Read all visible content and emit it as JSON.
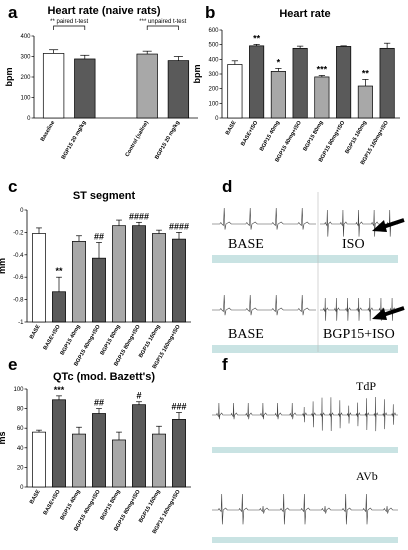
{
  "chart_data": [
    {
      "panel": "a",
      "type": "bar",
      "title": "Heart rate (naive rats)",
      "ylabel": "bpm",
      "ylim": [
        0,
        400
      ],
      "yticks": [
        0,
        100,
        200,
        300,
        400
      ],
      "categories": [
        "Baseline",
        "BGP15 20 mg/kg",
        "Control (saline)",
        "BGP15 20 mg/kg"
      ],
      "values": [
        315,
        288,
        312,
        280
      ],
      "errors": [
        18,
        18,
        14,
        20
      ],
      "colors": [
        "#ffffff",
        "#5a5a5a",
        "#a8a8a8",
        "#5a5a5a"
      ],
      "annotations": [
        "** paired t-test",
        "*** unpaired t-test"
      ],
      "significance": [
        "",
        "",
        "",
        ""
      ]
    },
    {
      "panel": "b",
      "type": "bar",
      "title": "Heart rate",
      "ylabel": "bpm",
      "ylim": [
        0,
        600
      ],
      "yticks": [
        0,
        100,
        200,
        300,
        400,
        500,
        600
      ],
      "categories": [
        "BASE",
        "BASE+ISO",
        "BGP15 40mg",
        "BGP15 40mg+ISO",
        "BGP15 80mg",
        "BGP15 80mg+ISO",
        "BGP15 160mg",
        "BGP15 160mg+ISO"
      ],
      "values": [
        365,
        492,
        318,
        475,
        280,
        488,
        218,
        475
      ],
      "errors": [
        25,
        10,
        20,
        15,
        10,
        4,
        45,
        35
      ],
      "colors": [
        "#ffffff",
        "#5a5a5a",
        "#a8a8a8",
        "#5a5a5a",
        "#a8a8a8",
        "#5a5a5a",
        "#a8a8a8",
        "#5a5a5a"
      ],
      "significance": [
        "",
        "**",
        "*",
        "",
        "***",
        "",
        "**",
        ""
      ]
    },
    {
      "panel": "c",
      "type": "bar",
      "title": "ST segment",
      "ylabel": "mm",
      "ylim": [
        -1.0,
        0
      ],
      "yticks": [
        0,
        -0.2,
        -0.4,
        -0.6,
        -0.8,
        -1.0
      ],
      "categories": [
        "BASE",
        "BASE+ISO",
        "BGP15 40mg",
        "BGP15 40mg+ISO",
        "BGP15 80mg",
        "BGP15 80mg+ISO",
        "BGP15 160mg",
        "BGP15 160mg+ISO"
      ],
      "values": [
        -0.21,
        -0.73,
        -0.28,
        -0.43,
        -0.14,
        -0.14,
        -0.21,
        -0.26
      ],
      "errors": [
        0.05,
        0.13,
        0.05,
        0.14,
        0.05,
        0.03,
        0.03,
        0.06
      ],
      "colors": [
        "#ffffff",
        "#5a5a5a",
        "#a8a8a8",
        "#5a5a5a",
        "#a8a8a8",
        "#5a5a5a",
        "#a8a8a8",
        "#5a5a5a"
      ],
      "significance": [
        "",
        "**",
        "",
        "##",
        "",
        "####",
        "",
        "####"
      ]
    },
    {
      "panel": "e",
      "type": "bar",
      "title": "QTc (mod. Bazett's)",
      "ylabel": "ms",
      "ylim": [
        0,
        100
      ],
      "yticks": [
        0,
        20,
        40,
        60,
        80,
        100
      ],
      "categories": [
        "BASE",
        "BASE+ISO",
        "BGP15 40mg",
        "BGP15 40mg+ISO",
        "BGP15 80mg",
        "BGP15 80mg+ISO",
        "BGP15 160mg",
        "BGP15 160mg+ISO"
      ],
      "values": [
        56,
        89,
        54,
        75,
        48,
        84,
        54,
        69
      ],
      "errors": [
        2,
        4,
        7,
        5,
        8,
        3,
        8,
        7
      ],
      "colors": [
        "#ffffff",
        "#5a5a5a",
        "#a8a8a8",
        "#5a5a5a",
        "#a8a8a8",
        "#5a5a5a",
        "#a8a8a8",
        "#5a5a5a"
      ],
      "significance": [
        "",
        "***",
        "",
        "##",
        "",
        "#",
        "",
        "###"
      ]
    }
  ],
  "panels": {
    "a": "a",
    "b": "b",
    "c": "c",
    "d": "d",
    "e": "e",
    "f": "f"
  },
  "ecg": {
    "d_labels": [
      "BASE",
      "ISO",
      "BASE",
      "BGP15+ISO"
    ],
    "f_labels": [
      "TdP",
      "AVb"
    ]
  },
  "colors": {
    "white_bar": "#ffffff",
    "dark_bar": "#5a5a5a",
    "light_bar": "#a8a8a8",
    "ecg_strip": "#c9e3e3"
  }
}
